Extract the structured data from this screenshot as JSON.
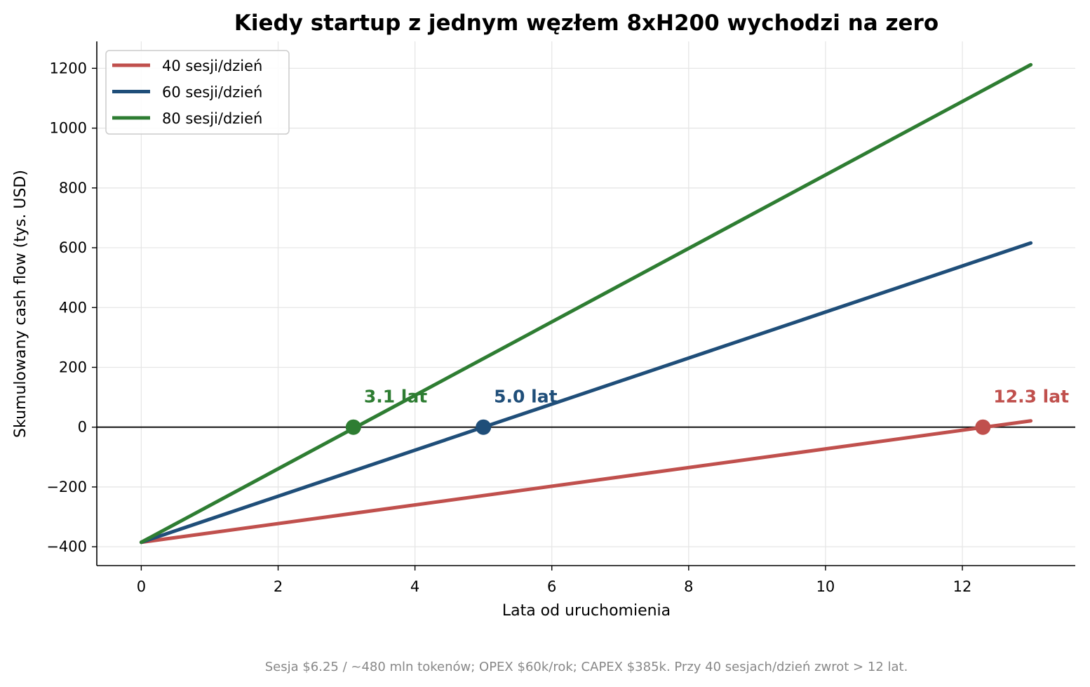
{
  "chart_data": {
    "type": "line",
    "title": "Kiedy startup z jednym węzłem 8xH200 wychodzi na zero",
    "xlabel": "Lata od uruchomienia",
    "ylabel": "Skumulowany cash flow (tys. USD)",
    "xlim": [
      -0.65,
      13.65
    ],
    "ylim": [
      -463,
      1290
    ],
    "x_ticks": [
      0,
      2,
      4,
      6,
      8,
      10,
      12
    ],
    "y_ticks": [
      -400,
      -200,
      0,
      200,
      400,
      600,
      800,
      1000,
      1200
    ],
    "x_tick_labels": [
      "0",
      "2",
      "4",
      "6",
      "8",
      "10",
      "12"
    ],
    "y_tick_labels": [
      "−400",
      "−200",
      "0",
      "200",
      "400",
      "600",
      "800",
      "1000",
      "1200"
    ],
    "grid": true,
    "legend_position": "top-left",
    "zero_line": true,
    "series": [
      {
        "name": "40 sesji/dzień",
        "color": "#c0504d",
        "x": [
          0,
          13
        ],
        "y": [
          -385,
          21
        ],
        "breakeven": {
          "x": 12.3,
          "y": 0,
          "label": "12.3 lat"
        }
      },
      {
        "name": "60 sesji/dzień",
        "color": "#1f4e79",
        "x": [
          0,
          13
        ],
        "y": [
          -385,
          616
        ],
        "breakeven": {
          "x": 5.0,
          "y": 0,
          "label": "5.0 lat"
        }
      },
      {
        "name": "80 sesji/dzień",
        "color": "#2e7d32",
        "x": [
          0,
          13
        ],
        "y": [
          -385,
          1212
        ],
        "breakeven": {
          "x": 3.1,
          "y": 0,
          "label": "3.1 lat"
        }
      }
    ],
    "footnote": "Sesja $6.25 / ~480 mln tokenów; OPEX $60k/rok; CAPEX $385k. Przy 40 sesjach/dzień zwrot > 12 lat."
  }
}
